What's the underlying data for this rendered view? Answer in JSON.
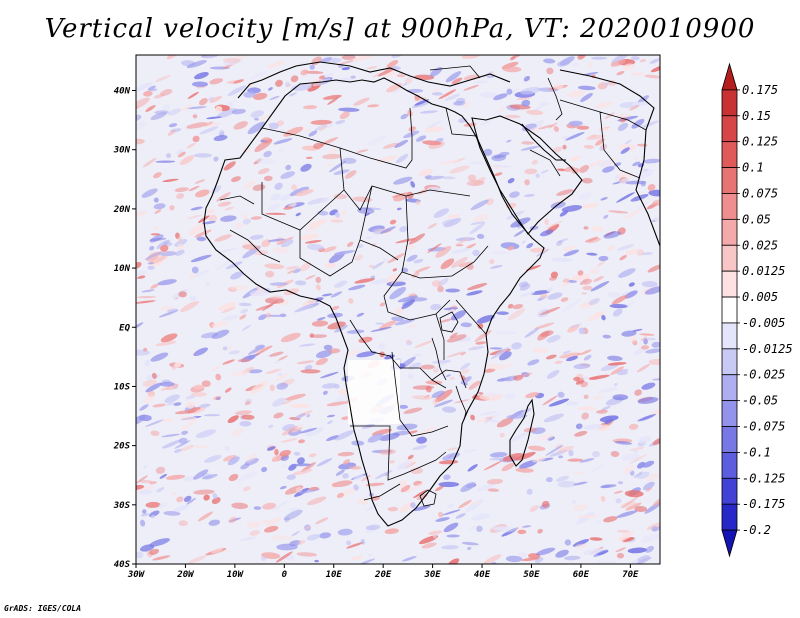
{
  "title": "Vertical velocity [m/s] at 900hPa, VT: 2020010900",
  "credit": "GrADS: IGES/COLA",
  "map": {
    "lon_range": [
      -30,
      76
    ],
    "lat_range": [
      -40,
      46
    ],
    "lon_ticks": [
      "30W",
      "20W",
      "10W",
      "0",
      "10E",
      "20E",
      "30E",
      "40E",
      "50E",
      "60E",
      "70E"
    ],
    "lat_ticks": [
      "40S",
      "30S",
      "20S",
      "10S",
      "EQ",
      "10N",
      "20N",
      "30N",
      "40N"
    ]
  },
  "colorbar": {
    "labels": [
      "0.175",
      "0.15",
      "0.125",
      "0.1",
      "0.075",
      "0.05",
      "0.025",
      "0.0125",
      "0.005",
      "-0.005",
      "-0.0125",
      "-0.025",
      "-0.05",
      "-0.075",
      "-0.1",
      "-0.125",
      "-0.175",
      "-0.2"
    ],
    "colors": [
      "#b41e1e",
      "#c83232",
      "#d64646",
      "#e05a5a",
      "#e87373",
      "#ef8e8e",
      "#f4aaaa",
      "#f8c6c6",
      "#fce2e2",
      "#ffffff",
      "#e4e4fa",
      "#c9c9f5",
      "#aeaef0",
      "#9393eb",
      "#7878e5",
      "#5d5de0",
      "#4242d6",
      "#2828c8",
      "#1414b4"
    ]
  }
}
